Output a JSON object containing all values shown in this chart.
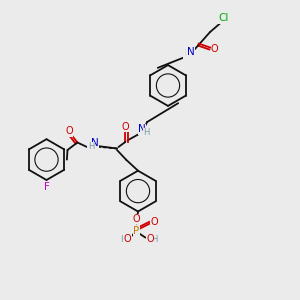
{
  "bg_color": "#ebebeb",
  "figsize": [
    3.0,
    3.0
  ],
  "dpi": 100,
  "lw": 1.3,
  "ring_r": 0.068,
  "colors": {
    "bond": "#111111",
    "N": "#0000cc",
    "O": "#cc0000",
    "F": "#cc00cc",
    "Cl": "#00aa00",
    "P": "#cc7700",
    "H": "#7799aa",
    "C": "#111111"
  }
}
